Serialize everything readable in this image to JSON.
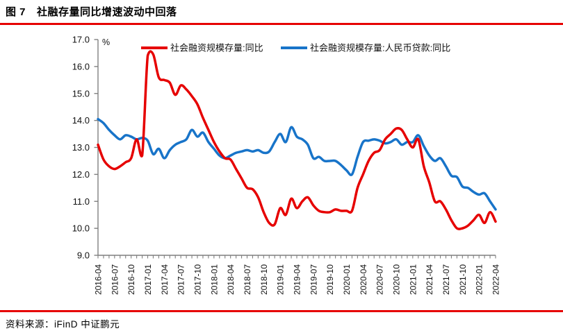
{
  "header": {
    "figure_label": "图 7",
    "title": "社融存量同比增速波动中回落"
  },
  "footer": {
    "source_text": "资料来源：iFinD  中证鹏元"
  },
  "colors": {
    "accent_red": "#E60000",
    "line_red": "#E60000",
    "line_blue": "#1874C9",
    "axis_gray": "#7F7F7F",
    "label_black": "#111111"
  },
  "chart_data": {
    "type": "line",
    "title": "",
    "unit_label": "%",
    "grid": false,
    "legend_position": "top",
    "ylim": [
      9.0,
      17.0
    ],
    "y_tick_labels": [
      "9.0",
      "10.0",
      "11.0",
      "12.0",
      "13.0",
      "14.0",
      "15.0",
      "16.0",
      "17.0"
    ],
    "x_tick_every": 3,
    "x_tick_labels": [
      "2016-04",
      "2016-07",
      "2016-10",
      "2017-01",
      "2017-04",
      "2017-07",
      "2017-10",
      "2018-01",
      "2018-04",
      "2018-07",
      "2018-10",
      "2019-01",
      "2019-04",
      "2019-07",
      "2019-10",
      "2020-01",
      "2020-04",
      "2020-07",
      "2020-10",
      "2021-01",
      "2021-04",
      "2021-07",
      "2021-10",
      "2022-01",
      "2022-04"
    ],
    "x": [
      "2016-04",
      "2016-05",
      "2016-06",
      "2016-07",
      "2016-08",
      "2016-09",
      "2016-10",
      "2016-11",
      "2016-12",
      "2017-01",
      "2017-02",
      "2017-03",
      "2017-04",
      "2017-05",
      "2017-06",
      "2017-07",
      "2017-08",
      "2017-09",
      "2017-10",
      "2017-11",
      "2017-12",
      "2018-01",
      "2018-02",
      "2018-03",
      "2018-04",
      "2018-05",
      "2018-06",
      "2018-07",
      "2018-08",
      "2018-09",
      "2018-10",
      "2018-11",
      "2018-12",
      "2019-01",
      "2019-02",
      "2019-03",
      "2019-04",
      "2019-05",
      "2019-06",
      "2019-07",
      "2019-08",
      "2019-09",
      "2019-10",
      "2019-11",
      "2019-12",
      "2020-01",
      "2020-02",
      "2020-03",
      "2020-04",
      "2020-05",
      "2020-06",
      "2020-07",
      "2020-08",
      "2020-09",
      "2020-10",
      "2020-11",
      "2020-12",
      "2021-01",
      "2021-02",
      "2021-03",
      "2021-04",
      "2021-05",
      "2021-06",
      "2021-07",
      "2021-08",
      "2021-09",
      "2021-10",
      "2021-11",
      "2021-12",
      "2022-01",
      "2022-02",
      "2022-03",
      "2022-04"
    ],
    "series": [
      {
        "name": "社会融资规模存量:同比",
        "color": "#E60000",
        "values": [
          13.1,
          12.55,
          12.3,
          12.2,
          12.3,
          12.45,
          12.6,
          13.3,
          12.7,
          16.4,
          16.45,
          15.6,
          15.5,
          15.4,
          14.95,
          15.3,
          15.15,
          14.9,
          14.6,
          14.1,
          13.65,
          13.2,
          12.85,
          12.6,
          12.55,
          12.2,
          11.85,
          11.5,
          11.45,
          11.15,
          10.6,
          10.2,
          10.15,
          10.75,
          10.5,
          11.1,
          10.75,
          11.0,
          11.15,
          10.85,
          10.65,
          10.6,
          10.6,
          10.7,
          10.65,
          10.65,
          10.65,
          11.5,
          12.0,
          12.5,
          12.8,
          12.9,
          13.3,
          13.5,
          13.7,
          13.65,
          13.3,
          13.0,
          13.3,
          12.3,
          11.7,
          11.0,
          11.0,
          10.7,
          10.3,
          10.0,
          10.0,
          10.1,
          10.3,
          10.5,
          10.2,
          10.6,
          10.25
        ]
      },
      {
        "name": "社会融资规模存量:人民币贷款:同比",
        "color": "#1874C9",
        "values": [
          14.05,
          13.9,
          13.65,
          13.45,
          13.3,
          13.45,
          13.4,
          13.3,
          13.35,
          13.25,
          12.75,
          12.95,
          12.6,
          12.9,
          13.1,
          13.2,
          13.3,
          13.65,
          13.4,
          13.55,
          13.2,
          12.95,
          12.7,
          12.6,
          12.7,
          12.8,
          12.85,
          12.9,
          12.85,
          12.9,
          12.8,
          12.85,
          13.2,
          13.5,
          13.2,
          13.75,
          13.4,
          13.3,
          13.1,
          12.6,
          12.65,
          12.5,
          12.5,
          12.5,
          12.35,
          12.15,
          12.0,
          12.65,
          13.2,
          13.25,
          13.3,
          13.25,
          13.15,
          13.2,
          13.3,
          13.1,
          13.2,
          13.2,
          13.45,
          13.05,
          12.7,
          12.5,
          12.6,
          12.3,
          11.95,
          11.9,
          11.55,
          11.5,
          11.35,
          11.25,
          11.3,
          11.0,
          10.7
        ]
      }
    ]
  }
}
